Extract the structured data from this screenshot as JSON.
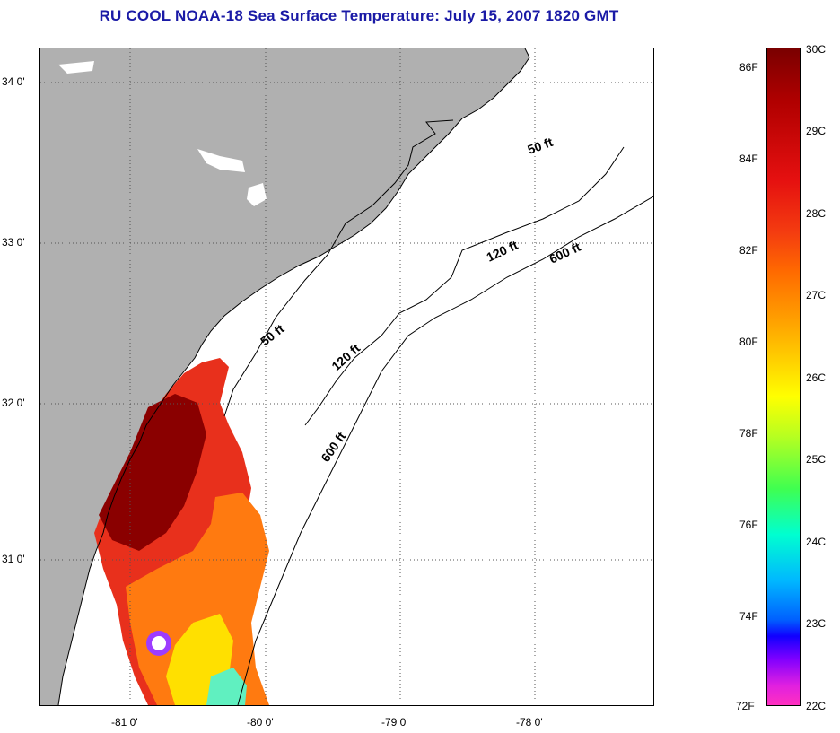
{
  "title": "RU COOL  NOAA-18  Sea Surface Temperature:  July 15, 2007 1820 GMT",
  "map": {
    "lat_labels": [
      "34 0'",
      "33 0'",
      "32 0'",
      "31 0'"
    ],
    "lon_labels": [
      "-81 0'",
      "-80 0'",
      "-79 0'",
      "-78 0'"
    ],
    "contour_labels": {
      "c50_north": "50 ft",
      "c50_south": "50 ft",
      "c120_north": "120 ft",
      "c120_south": "120 ft",
      "c600_north": "600 ft",
      "c600_south": "600 ft"
    },
    "colors": {
      "land": "#b0b0b0",
      "ocean": "#ffffff",
      "coastline": "#000000"
    }
  },
  "colorbar": {
    "fahrenheit_labels": [
      "86F",
      "84F",
      "82F",
      "80F",
      "78F",
      "76F",
      "74F",
      "72F"
    ],
    "celsius_labels": [
      "30C",
      "29C",
      "28C",
      "27C",
      "26C",
      "25C",
      "24C",
      "23C",
      "22C"
    ],
    "colors": {
      "max": "#7a0000",
      "red": "#e51010",
      "orange": "#ff6a00",
      "yellow": "#ffff00",
      "green": "#40ff50",
      "cyan": "#00ffd0",
      "blue": "#1000ff",
      "min": "#ff30c0"
    }
  }
}
